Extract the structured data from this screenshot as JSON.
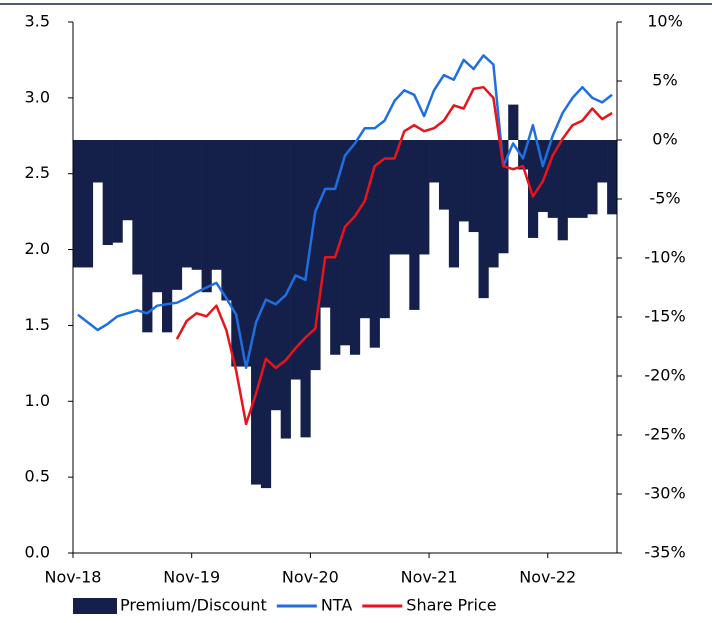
{
  "chart_data": {
    "type": "combo",
    "categories": [
      "Nov-18",
      null,
      null,
      null,
      null,
      null,
      null,
      null,
      null,
      null,
      null,
      null,
      "Nov-19",
      null,
      null,
      null,
      null,
      null,
      null,
      null,
      null,
      null,
      null,
      null,
      "Nov-20",
      null,
      null,
      null,
      null,
      null,
      null,
      null,
      null,
      null,
      null,
      null,
      "Nov-21",
      null,
      null,
      null,
      null,
      null,
      null,
      null,
      null,
      null,
      null,
      null,
      "Nov-22",
      null,
      null,
      null,
      null,
      null,
      null
    ],
    "ylim": [
      0,
      3.5
    ],
    "yticks": [
      {
        "value": 0,
        "label": "0.0"
      },
      0.5,
      {
        "value": 1,
        "label": "1.0"
      },
      1.5,
      {
        "value": 2,
        "label": "2.0"
      },
      2.5,
      {
        "value": 3,
        "label": "3.0"
      },
      3.5
    ],
    "y2lim": [
      -35,
      10
    ],
    "y2ticks": [
      {
        "value": -35,
        "label": "-35%"
      },
      {
        "value": -30,
        "label": "-30%"
      },
      {
        "value": -25,
        "label": "-25%"
      },
      {
        "value": -20,
        "label": "-20%"
      },
      {
        "value": -15,
        "label": "-15%"
      },
      {
        "value": -10,
        "label": "-10%"
      },
      {
        "value": -5,
        "label": "-5%"
      },
      {
        "value": 0,
        "label": "0%"
      },
      {
        "value": 5,
        "label": "5%"
      },
      {
        "value": 10,
        "label": "10%"
      }
    ],
    "series": [
      {
        "name": "Premium/Discount",
        "type": "bar",
        "axis": "y2",
        "color": "#14204a",
        "values": [
          -10.8,
          -10.8,
          -3.6,
          -8.9,
          -8.7,
          -6.8,
          -11.4,
          -16.3,
          -12.9,
          -16.3,
          -12.7,
          -10.8,
          -11,
          -12.9,
          -11,
          -13.6,
          -19.2,
          -19.2,
          -29.2,
          -29.5,
          -22.9,
          -25.3,
          -20.3,
          -25.2,
          -19.5,
          -14.2,
          -18.2,
          -17.4,
          -18.2,
          -15.1,
          -17.6,
          -15.1,
          -9.7,
          -9.7,
          -14.4,
          -9.7,
          -3.6,
          -5.9,
          -10.8,
          -6.9,
          -7.8,
          -13.4,
          -10.8,
          -9.6,
          3,
          -2.5,
          -8.3,
          -6.1,
          -6.6,
          -8.5,
          -6.6,
          -6.6,
          -6.3,
          -3.6,
          -6.3
        ]
      },
      {
        "name": "NTA",
        "type": "line",
        "color": "#1f6fe0",
        "values": [
          1.57,
          1.52,
          1.47,
          1.51,
          1.56,
          1.58,
          1.6,
          1.58,
          1.63,
          1.64,
          1.65,
          1.68,
          1.72,
          1.75,
          1.78,
          1.68,
          1.57,
          1.22,
          1.52,
          1.67,
          1.64,
          1.7,
          1.83,
          1.8,
          2.25,
          2.4,
          2.4,
          2.62,
          2.7,
          2.8,
          2.8,
          2.85,
          2.98,
          3.05,
          3.02,
          2.88,
          3.05,
          3.15,
          3.12,
          3.25,
          3.19,
          3.28,
          3.22,
          2.55,
          2.7,
          2.6,
          2.82,
          2.55,
          2.75,
          2.9,
          3.0,
          3.07,
          3.0,
          2.97,
          3.02
        ]
      },
      {
        "name": "Share Price",
        "type": "line",
        "color": "#e8141c",
        "values": [
          null,
          null,
          null,
          null,
          null,
          null,
          null,
          null,
          null,
          null,
          1.41,
          1.53,
          1.58,
          1.56,
          1.63,
          1.47,
          1.2,
          0.85,
          1.05,
          1.28,
          1.22,
          1.27,
          1.35,
          1.42,
          1.48,
          1.95,
          1.95,
          2.15,
          2.22,
          2.32,
          2.55,
          2.6,
          2.6,
          2.78,
          2.82,
          2.78,
          2.8,
          2.85,
          2.95,
          2.93,
          3.06,
          3.07,
          3.0,
          2.55,
          2.53,
          2.55,
          2.35,
          2.45,
          2.62,
          2.73,
          2.82,
          2.85,
          2.93,
          2.86,
          2.9
        ]
      }
    ]
  }
}
